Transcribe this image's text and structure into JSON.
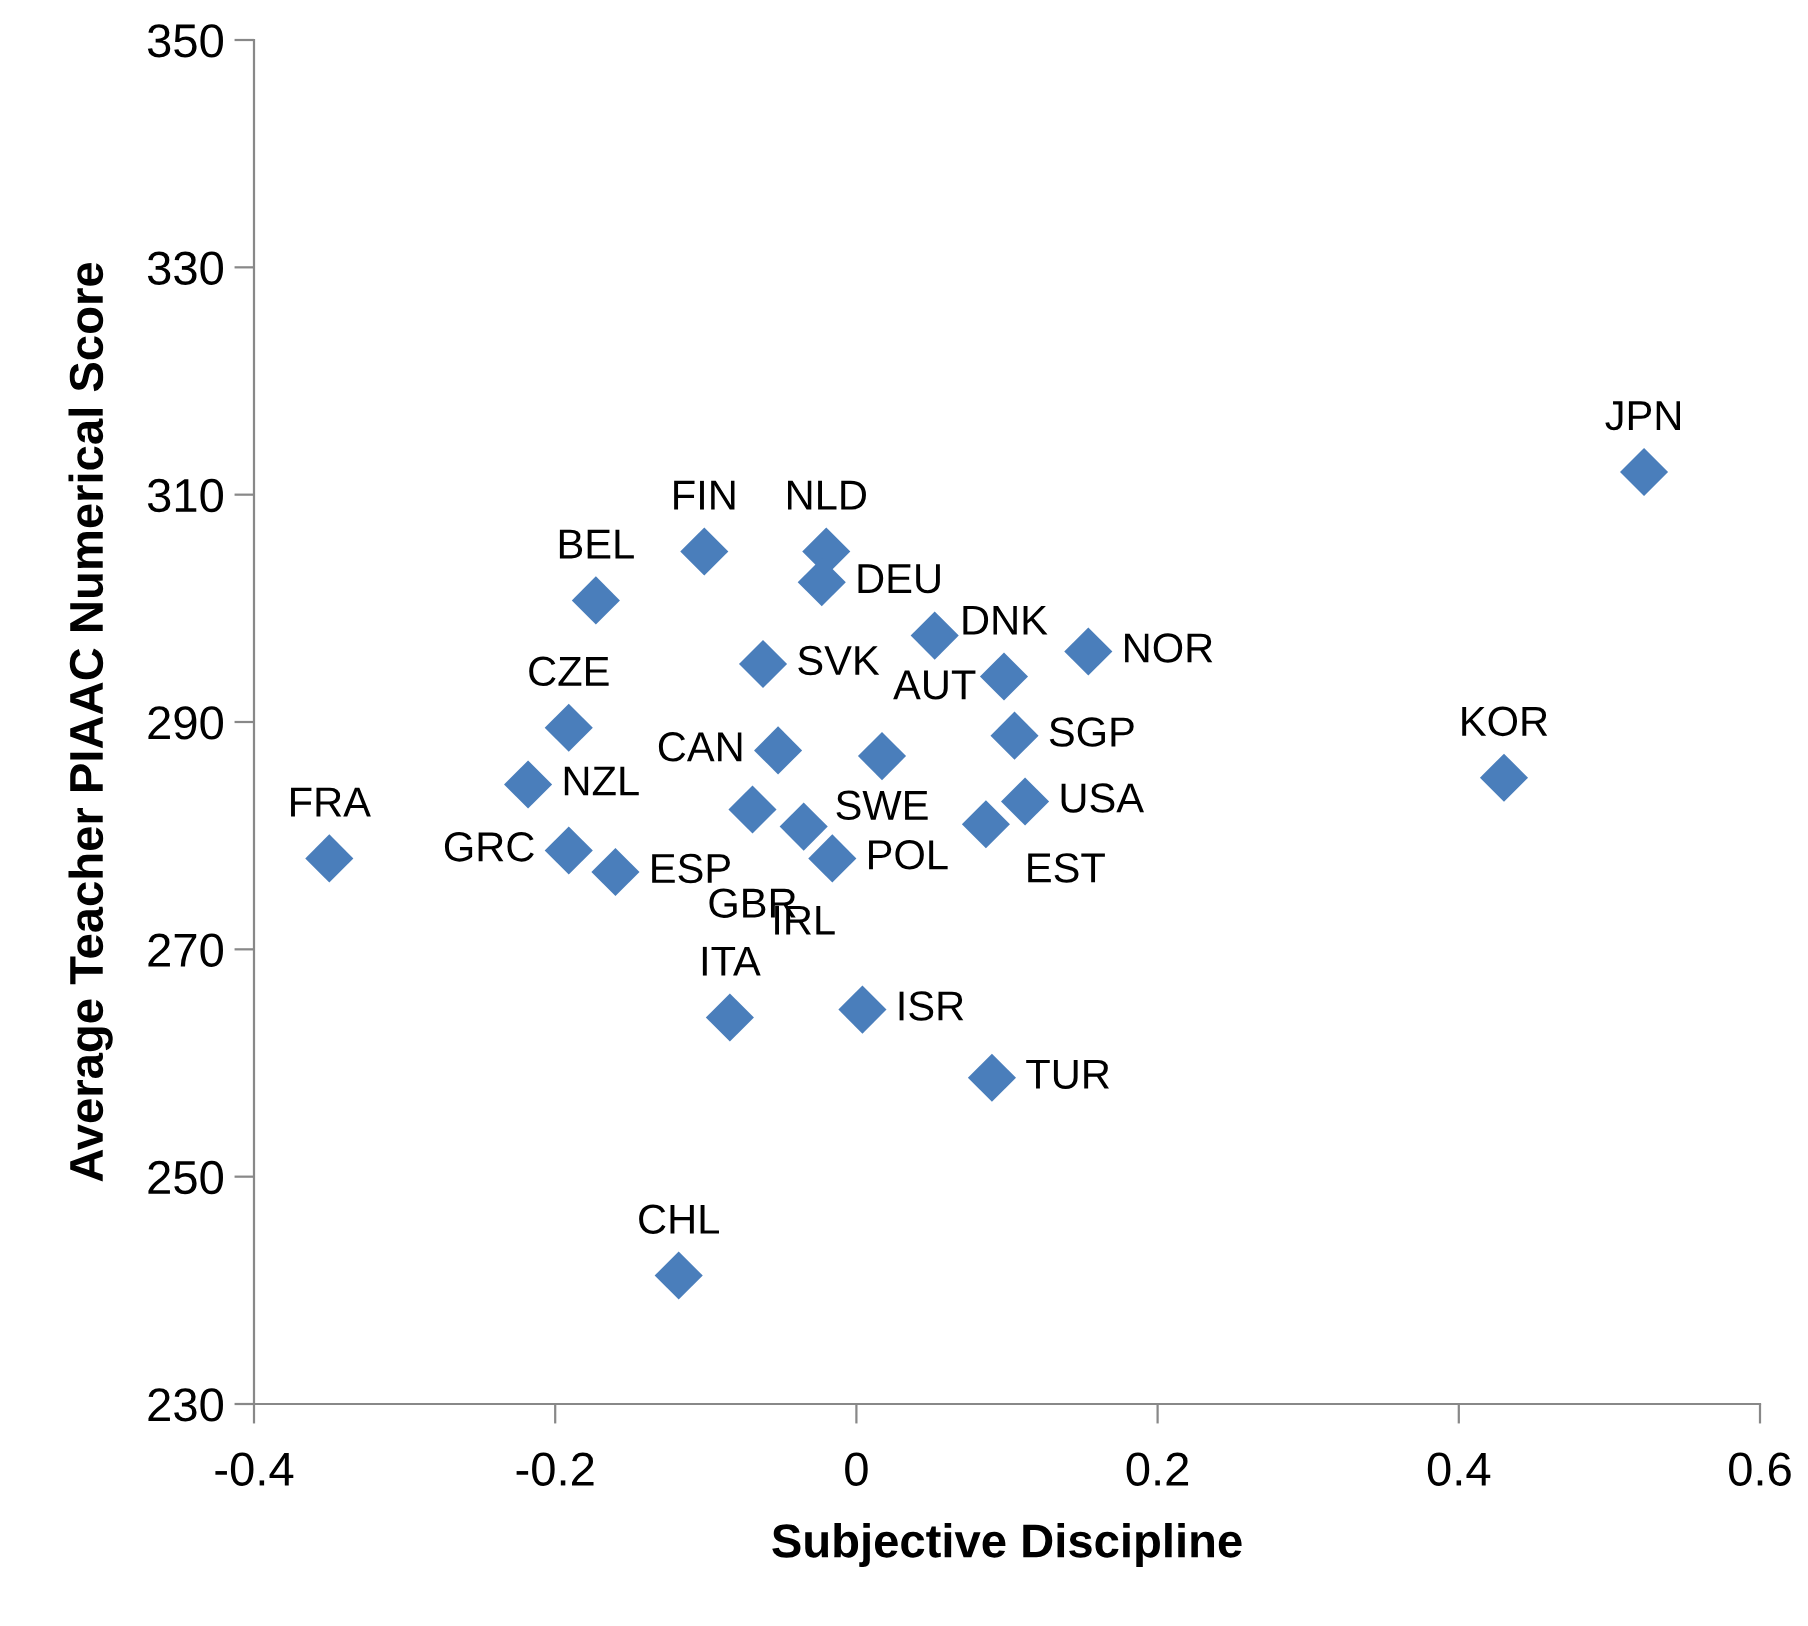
{
  "chart_data": {
    "type": "scatter",
    "xlabel": "Subjective Discipline",
    "ylabel": "Average Teacher PIAAC Numerical Score",
    "x": [
      -0.35,
      -0.218,
      -0.191,
      -0.191,
      -0.16,
      -0.173,
      -0.101,
      -0.02,
      -0.023,
      -0.062,
      -0.052,
      0.017,
      -0.069,
      -0.035,
      -0.016,
      0.052,
      0.098,
      0.154,
      0.105,
      0.112,
      0.086,
      0.523,
      0.43,
      -0.084,
      0.004,
      0.09,
      -0.118
    ],
    "values": [
      278.0,
      284.5,
      289.5,
      278.7,
      276.8,
      300.7,
      305.0,
      305.0,
      302.3,
      295.1,
      287.5,
      287.0,
      282.3,
      280.8,
      278.0,
      297.6,
      294.0,
      296.2,
      288.8,
      283.0,
      281.0,
      312.0,
      285.1,
      264.0,
      264.7,
      258.7,
      241.3
    ],
    "color": "#4a7ebb",
    "marker": "diamond",
    "grid": false,
    "legend": false,
    "xlim": [
      -0.4,
      0.6
    ],
    "xticks": [
      -0.4,
      -0.2,
      0,
      0.2,
      0.4,
      0.6
    ],
    "ylim": [
      230,
      350
    ],
    "yticks": [
      230,
      250,
      270,
      290,
      310,
      330,
      350
    ],
    "annotations": [
      {
        "text": "FRA",
        "x": -0.35,
        "y": 278.0
      },
      {
        "text": "NZL",
        "x": -0.218,
        "y": 284.5
      },
      {
        "text": "CZE",
        "x": -0.191,
        "y": 289.5
      },
      {
        "text": "GRC",
        "x": -0.191,
        "y": 278.7
      },
      {
        "text": "ESP",
        "x": -0.16,
        "y": 276.8
      },
      {
        "text": "BEL",
        "x": -0.173,
        "y": 300.7
      },
      {
        "text": "FIN",
        "x": -0.101,
        "y": 305.0
      },
      {
        "text": "NLD",
        "x": -0.02,
        "y": 305.0
      },
      {
        "text": "DEU",
        "x": -0.023,
        "y": 302.3
      },
      {
        "text": "SVK",
        "x": -0.062,
        "y": 295.1
      },
      {
        "text": "CAN",
        "x": -0.052,
        "y": 287.5
      },
      {
        "text": "SWE",
        "x": 0.017,
        "y": 287.0
      },
      {
        "text": "GBR",
        "x": -0.069,
        "y": 282.3
      },
      {
        "text": "IRL",
        "x": -0.035,
        "y": 280.8
      },
      {
        "text": "POL",
        "x": -0.016,
        "y": 278.0
      },
      {
        "text": "AUT",
        "x": 0.052,
        "y": 297.6
      },
      {
        "text": "DNK",
        "x": 0.098,
        "y": 294.0
      },
      {
        "text": "NOR",
        "x": 0.154,
        "y": 296.2
      },
      {
        "text": "SGP",
        "x": 0.105,
        "y": 288.8
      },
      {
        "text": "USA",
        "x": 0.112,
        "y": 283.0
      },
      {
        "text": "EST",
        "x": 0.086,
        "y": 281.0
      },
      {
        "text": "JPN",
        "x": 0.523,
        "y": 312.0
      },
      {
        "text": "KOR",
        "x": 0.43,
        "y": 285.1
      },
      {
        "text": "ITA",
        "x": -0.084,
        "y": 264.0
      },
      {
        "text": "ISR",
        "x": 0.004,
        "y": 264.7
      },
      {
        "text": "TUR",
        "x": 0.09,
        "y": 258.7
      },
      {
        "text": "CHL",
        "x": -0.118,
        "y": 241.3
      }
    ]
  }
}
